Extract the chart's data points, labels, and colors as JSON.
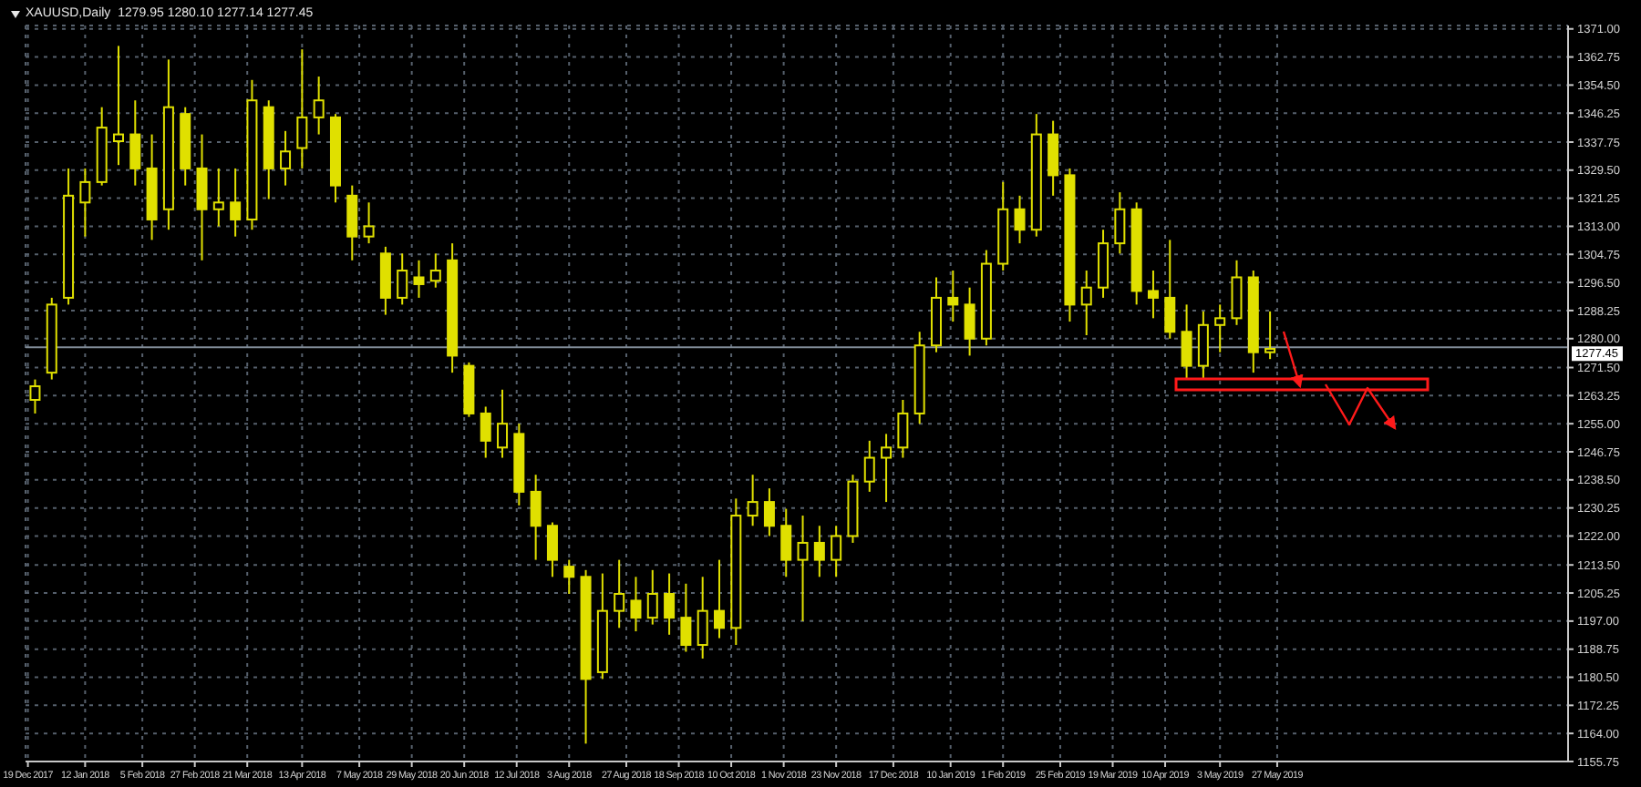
{
  "chart_data": {
    "type": "candlestick",
    "title": "XAUUSD,Daily  1279.95 1280.10 1277.14 1277.45",
    "color": "#e0e000",
    "x": [
      "2017-12-22",
      "2017-12-29",
      "2018-01-05",
      "2018-01-12",
      "2018-01-19",
      "2018-01-26",
      "2018-02-02",
      "2018-02-09",
      "2018-02-16",
      "2018-02-23",
      "2018-03-02",
      "2018-03-09",
      "2018-03-16",
      "2018-03-23",
      "2018-03-30",
      "2018-04-06",
      "2018-04-13",
      "2018-04-20",
      "2018-04-27",
      "2018-05-04",
      "2018-05-11",
      "2018-05-18",
      "2018-05-25",
      "2018-06-01",
      "2018-06-08",
      "2018-06-15",
      "2018-06-22",
      "2018-06-29",
      "2018-07-06",
      "2018-07-13",
      "2018-07-20",
      "2018-07-27",
      "2018-08-03",
      "2018-08-10",
      "2018-08-17",
      "2018-08-24",
      "2018-08-31",
      "2018-09-07",
      "2018-09-14",
      "2018-09-21",
      "2018-09-28",
      "2018-10-05",
      "2018-10-12",
      "2018-10-19",
      "2018-10-26",
      "2018-11-02",
      "2018-11-09",
      "2018-11-16",
      "2018-11-23",
      "2018-11-30",
      "2018-12-07",
      "2018-12-14",
      "2018-12-21",
      "2018-12-28",
      "2019-01-04",
      "2019-01-11",
      "2019-01-18",
      "2019-01-25",
      "2019-02-01",
      "2019-02-08",
      "2019-02-15",
      "2019-02-22",
      "2019-03-01",
      "2019-03-08",
      "2019-03-15",
      "2019-03-22",
      "2019-03-29",
      "2019-04-05",
      "2019-04-12",
      "2019-04-19",
      "2019-04-26",
      "2019-05-03",
      "2019-05-10",
      "2019-05-17",
      "2019-05-24"
    ],
    "ohlc": [
      [
        1262,
        1268,
        1258,
        1266
      ],
      [
        1270,
        1292,
        1268,
        1290
      ],
      [
        1292,
        1330,
        1290,
        1322
      ],
      [
        1320,
        1330,
        1310,
        1326
      ],
      [
        1326,
        1348,
        1325,
        1342
      ],
      [
        1338,
        1366,
        1331,
        1340
      ],
      [
        1340,
        1350,
        1325,
        1330
      ],
      [
        1330,
        1340,
        1309,
        1315
      ],
      [
        1318,
        1362,
        1312,
        1348
      ],
      [
        1346,
        1348,
        1325,
        1330
      ],
      [
        1330,
        1340,
        1303,
        1318
      ],
      [
        1318,
        1330,
        1313,
        1320
      ],
      [
        1320,
        1330,
        1310,
        1315
      ],
      [
        1315,
        1356,
        1312,
        1350
      ],
      [
        1348,
        1350,
        1321,
        1330
      ],
      [
        1330,
        1341,
        1325,
        1335
      ],
      [
        1336,
        1365,
        1330,
        1345
      ],
      [
        1345,
        1357,
        1340,
        1350
      ],
      [
        1345,
        1346,
        1320,
        1325
      ],
      [
        1322,
        1325,
        1303,
        1310
      ],
      [
        1310,
        1320,
        1308,
        1313
      ],
      [
        1305,
        1307,
        1287,
        1292
      ],
      [
        1292,
        1305,
        1290,
        1300
      ],
      [
        1298,
        1303,
        1292,
        1296
      ],
      [
        1297,
        1305,
        1295,
        1300
      ],
      [
        1303,
        1308,
        1270,
        1275
      ],
      [
        1272,
        1273,
        1257,
        1258
      ],
      [
        1258,
        1260,
        1245,
        1250
      ],
      [
        1248,
        1265,
        1245,
        1255
      ],
      [
        1252,
        1255,
        1231,
        1235
      ],
      [
        1235,
        1240,
        1215,
        1225
      ],
      [
        1225,
        1226,
        1210,
        1215
      ],
      [
        1213,
        1215,
        1205,
        1210
      ],
      [
        1210,
        1212,
        1161,
        1180
      ],
      [
        1182,
        1211,
        1180,
        1200
      ],
      [
        1200,
        1215,
        1195,
        1205
      ],
      [
        1203,
        1210,
        1194,
        1198
      ],
      [
        1198,
        1212,
        1196,
        1205
      ],
      [
        1205,
        1211,
        1193,
        1198
      ],
      [
        1198,
        1208,
        1188,
        1190
      ],
      [
        1190,
        1210,
        1186,
        1200
      ],
      [
        1200,
        1215,
        1192,
        1195
      ],
      [
        1195,
        1233,
        1190,
        1228
      ],
      [
        1228,
        1240,
        1225,
        1232
      ],
      [
        1232,
        1236,
        1222,
        1225
      ],
      [
        1225,
        1230,
        1210,
        1215
      ],
      [
        1215,
        1228,
        1197,
        1220
      ],
      [
        1220,
        1225,
        1210,
        1215
      ],
      [
        1215,
        1225,
        1210,
        1222
      ],
      [
        1222,
        1240,
        1220,
        1238
      ],
      [
        1238,
        1250,
        1235,
        1245
      ],
      [
        1245,
        1252,
        1232,
        1248
      ],
      [
        1248,
        1262,
        1245,
        1258
      ],
      [
        1258,
        1282,
        1255,
        1278
      ],
      [
        1278,
        1298,
        1276,
        1292
      ],
      [
        1292,
        1300,
        1285,
        1290
      ],
      [
        1290,
        1295,
        1275,
        1280
      ],
      [
        1280,
        1306,
        1278,
        1302
      ],
      [
        1302,
        1326,
        1300,
        1318
      ],
      [
        1318,
        1322,
        1308,
        1312
      ],
      [
        1312,
        1346,
        1310,
        1340
      ],
      [
        1340,
        1344,
        1322,
        1328
      ],
      [
        1328,
        1330,
        1285,
        1290
      ],
      [
        1290,
        1300,
        1281,
        1295
      ],
      [
        1295,
        1312,
        1292,
        1308
      ],
      [
        1308,
        1323,
        1305,
        1318
      ],
      [
        1318,
        1320,
        1290,
        1294
      ],
      [
        1294,
        1300,
        1286,
        1292
      ],
      [
        1292,
        1309,
        1280,
        1282
      ],
      [
        1282,
        1290,
        1268,
        1272
      ],
      [
        1272,
        1288,
        1268,
        1284
      ],
      [
        1284,
        1290,
        1276,
        1286
      ],
      [
        1286,
        1303,
        1284,
        1298
      ],
      [
        1298,
        1300,
        1270,
        1276
      ],
      [
        1276,
        1288,
        1274,
        1277
      ]
    ],
    "xlim": [
      "2017-12-18",
      "2019-09-26"
    ],
    "xticks": [
      {
        "value": "2017-12-19",
        "label": "19 Dec 2017"
      },
      {
        "value": "2018-01-12",
        "label": "12 Jan 2018"
      },
      {
        "value": "2018-02-05",
        "label": "5 Feb 2018"
      },
      {
        "value": "2018-02-27",
        "label": "27 Feb 2018"
      },
      {
        "value": "2018-03-21",
        "label": "21 Mar 2018"
      },
      {
        "value": "2018-04-13",
        "label": "13 Apr 2018"
      },
      {
        "value": "2018-05-07",
        "label": "7 May 2018"
      },
      {
        "value": "2018-05-29",
        "label": "29 May 2018"
      },
      {
        "value": "2018-06-20",
        "label": "20 Jun 2018"
      },
      {
        "value": "2018-07-12",
        "label": "12 Jul 2018"
      },
      {
        "value": "2018-08-03",
        "label": "3 Aug 2018"
      },
      {
        "value": "2018-08-27",
        "label": "27 Aug 2018"
      },
      {
        "value": "2018-09-18",
        "label": "18 Sep 2018"
      },
      {
        "value": "2018-10-10",
        "label": "10 Oct 2018"
      },
      {
        "value": "2018-11-01",
        "label": "1 Nov 2018"
      },
      {
        "value": "2018-11-23",
        "label": "23 Nov 2018"
      },
      {
        "value": "2018-12-17",
        "label": "17 Dec 2018"
      },
      {
        "value": "2019-01-10",
        "label": "10 Jan 2019"
      },
      {
        "value": "2019-02-01",
        "label": "1 Feb 2019"
      },
      {
        "value": "2019-02-25",
        "label": "25 Feb 2019"
      },
      {
        "value": "2019-03-19",
        "label": "19 Mar 2019"
      },
      {
        "value": "2019-04-10",
        "label": "10 Apr 2019"
      },
      {
        "value": "2019-05-03",
        "label": "3 May 2019"
      },
      {
        "value": "2019-05-27",
        "label": "27 May 2019"
      }
    ],
    "ylim": [
      1155.75,
      1372
    ],
    "yticks": [
      {
        "value": 1155.75,
        "label": "1155.75"
      },
      {
        "value": 1164,
        "label": "1164.00"
      },
      {
        "value": 1172.25,
        "label": "1172.25"
      },
      {
        "value": 1180.5,
        "label": "1180.50"
      },
      {
        "value": 1188.75,
        "label": "1188.75"
      },
      {
        "value": 1197,
        "label": "1197.00"
      },
      {
        "value": 1205.25,
        "label": "1205.25"
      },
      {
        "value": 1213.5,
        "label": "1213.50"
      },
      {
        "value": 1222,
        "label": "1222.00"
      },
      {
        "value": 1230.25,
        "label": "1230.25"
      },
      {
        "value": 1238.5,
        "label": "1238.50"
      },
      {
        "value": 1246.75,
        "label": "1246.75"
      },
      {
        "value": 1255,
        "label": "1255.00"
      },
      {
        "value": 1263.25,
        "label": "1263.25"
      },
      {
        "value": 1271.5,
        "label": "1271.50"
      },
      {
        "value": 1280,
        "label": "1280.00"
      },
      {
        "value": 1288.25,
        "label": "1288.25"
      },
      {
        "value": 1296.5,
        "label": "1296.50"
      },
      {
        "value": 1304.75,
        "label": "1304.75"
      },
      {
        "value": 1313,
        "label": "1313.00"
      },
      {
        "value": 1321.25,
        "label": "1321.25"
      },
      {
        "value": 1329.5,
        "label": "1329.50"
      },
      {
        "value": 1337.75,
        "label": "1337.75"
      },
      {
        "value": 1346.25,
        "label": "1346.25"
      },
      {
        "value": 1354.5,
        "label": "1354.50"
      },
      {
        "value": 1362.75,
        "label": "1362.75"
      },
      {
        "value": 1371,
        "label": "1371.00"
      }
    ],
    "ref_lines": [
      {
        "axis": "y",
        "value": 1277.45,
        "label": "1277.45",
        "color": "#7f8a96"
      }
    ],
    "grid": true
  }
}
